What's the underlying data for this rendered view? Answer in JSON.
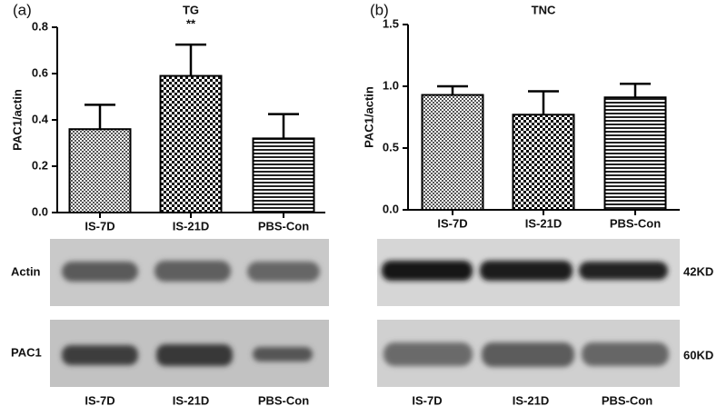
{
  "chart_data": [
    {
      "type": "bar",
      "panel": "(a)",
      "title": "TG",
      "y_label": "PAC1/actin",
      "categories": [
        "IS-7D",
        "IS-21D",
        "PBS-Con"
      ],
      "values": [
        0.36,
        0.59,
        0.32
      ],
      "errors": [
        0.105,
        0.135,
        0.105
      ],
      "annotation": "**",
      "ylim": [
        0,
        0.8
      ],
      "yticks": [
        {
          "value": 0,
          "label": "0.0"
        },
        0.2,
        0.4,
        0.6,
        0.8
      ]
    },
    {
      "type": "bar",
      "panel": "(b)",
      "title": "TNC",
      "y_label": "PAC1/actin",
      "categories": [
        "IS-7D",
        "IS-21D",
        "PBS-Con"
      ],
      "values": [
        0.93,
        0.77,
        0.91
      ],
      "errors": [
        0.07,
        0.19,
        0.11
      ],
      "ylim": [
        0,
        1.5
      ],
      "yticks": [
        {
          "value": 0,
          "label": "0.0"
        },
        0.5,
        {
          "value": 1,
          "label": "1.0"
        },
        1.5
      ]
    }
  ],
  "blots": [
    {
      "row_labels": [
        "Actin",
        "PAC1"
      ],
      "lanes": [
        "IS-7D",
        "IS-21D",
        "PBS-Con"
      ]
    },
    {
      "row_labels": [
        "42KD",
        "60KD"
      ],
      "lanes": [
        "IS-7D",
        "IS-21D",
        "PBS-Con"
      ]
    }
  ]
}
